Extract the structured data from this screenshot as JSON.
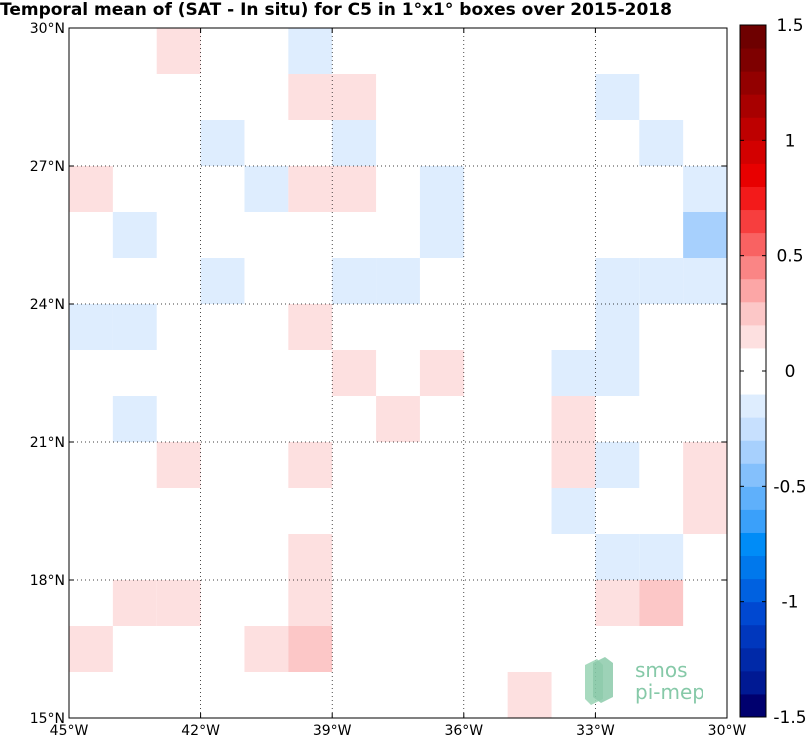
{
  "chart_data": {
    "type": "heatmap",
    "title": "Temporal mean of (SAT - In situ) for C5 in 1°x1° boxes over 2015-2018",
    "xlim": [
      -45,
      -30
    ],
    "ylim": [
      15,
      30
    ],
    "xticks": [
      {
        "value": -45,
        "label": "45°W"
      },
      {
        "value": -42,
        "label": "42°W"
      },
      {
        "value": -39,
        "label": "39°W"
      },
      {
        "value": -36,
        "label": "36°W"
      },
      {
        "value": -33,
        "label": "33°W"
      },
      {
        "value": -30,
        "label": "30°W"
      }
    ],
    "yticks": [
      {
        "value": 15,
        "label": "15°N"
      },
      {
        "value": 18,
        "label": "18°N"
      },
      {
        "value": 21,
        "label": "21°N"
      },
      {
        "value": 24,
        "label": "24°N"
      },
      {
        "value": 27,
        "label": "27°N"
      },
      {
        "value": 30,
        "label": "30°N"
      }
    ],
    "grid": true,
    "colorbar": {
      "min": -1.5,
      "max": 1.5,
      "ticks": [
        {
          "value": 1.5,
          "label": "1.5"
        },
        {
          "value": 1,
          "label": "1"
        },
        {
          "value": 0.5,
          "label": "0.5"
        },
        {
          "value": 0,
          "label": "0"
        },
        {
          "value": -0.5,
          "label": "-0.5"
        },
        {
          "value": -1,
          "label": "-1"
        },
        {
          "value": -1.5,
          "label": "-1.5"
        }
      ],
      "colors": [
        "#00006e",
        "#001993",
        "#0029a8",
        "#0037bd",
        "#0048d1",
        "#0061e0",
        "#0078ec",
        "#008cf7",
        "#3aa0fa",
        "#5fb0fb",
        "#84c0fc",
        "#a7d0fd",
        "#c7e0fe",
        "#deedfe",
        "#ffffff",
        "#ffffff",
        "#fde0e0",
        "#fcc7c7",
        "#fca6a6",
        "#fa8585",
        "#f96262",
        "#f73e3e",
        "#f31a1a",
        "#e80000",
        "#d30000",
        "#be0000",
        "#a80000",
        "#930000",
        "#7e0000",
        "#6e0000"
      ]
    },
    "cells": [
      {
        "lon": -43,
        "lat": 29,
        "value": 0.1
      },
      {
        "lon": -40,
        "lat": 29,
        "value": -0.1
      },
      {
        "lon": -40,
        "lat": 28,
        "value": 0.1
      },
      {
        "lon": -39,
        "lat": 28,
        "value": 0.15
      },
      {
        "lon": -33,
        "lat": 28,
        "value": -0.1
      },
      {
        "lon": -42,
        "lat": 27,
        "value": -0.1
      },
      {
        "lon": -39,
        "lat": 27,
        "value": -0.1
      },
      {
        "lon": -32,
        "lat": 27,
        "value": -0.1
      },
      {
        "lon": -45,
        "lat": 26,
        "value": 0.1
      },
      {
        "lon": -41,
        "lat": 26,
        "value": -0.1
      },
      {
        "lon": -40,
        "lat": 26,
        "value": 0.15
      },
      {
        "lon": -39,
        "lat": 26,
        "value": 0.15
      },
      {
        "lon": -37,
        "lat": 26,
        "value": -0.1
      },
      {
        "lon": -31,
        "lat": 26,
        "value": -0.1
      },
      {
        "lon": -44,
        "lat": 25,
        "value": -0.1
      },
      {
        "lon": -37,
        "lat": 25,
        "value": -0.1
      },
      {
        "lon": -31,
        "lat": 25,
        "value": -0.35
      },
      {
        "lon": -42,
        "lat": 24,
        "value": -0.1
      },
      {
        "lon": -39,
        "lat": 24,
        "value": -0.1
      },
      {
        "lon": -38,
        "lat": 24,
        "value": -0.2
      },
      {
        "lon": -33,
        "lat": 24,
        "value": -0.1
      },
      {
        "lon": -32,
        "lat": 24,
        "value": -0.1
      },
      {
        "lon": -31,
        "lat": 24,
        "value": -0.1
      },
      {
        "lon": -45,
        "lat": 23,
        "value": -0.1
      },
      {
        "lon": -44,
        "lat": 23,
        "value": -0.1
      },
      {
        "lon": -40,
        "lat": 23,
        "value": 0.1
      },
      {
        "lon": -33,
        "lat": 23,
        "value": -0.1
      },
      {
        "lon": -39,
        "lat": 22,
        "value": 0.1
      },
      {
        "lon": -37,
        "lat": 22,
        "value": 0.1
      },
      {
        "lon": -34,
        "lat": 22,
        "value": -0.1
      },
      {
        "lon": -33,
        "lat": 22,
        "value": -0.1
      },
      {
        "lon": -44,
        "lat": 21,
        "value": -0.1
      },
      {
        "lon": -38,
        "lat": 21,
        "value": 0.1
      },
      {
        "lon": -34,
        "lat": 21,
        "value": 0.1
      },
      {
        "lon": -43,
        "lat": 20,
        "value": 0.1
      },
      {
        "lon": -40,
        "lat": 20,
        "value": 0.1
      },
      {
        "lon": -34,
        "lat": 20,
        "value": 0.1
      },
      {
        "lon": -33,
        "lat": 20,
        "value": -0.1
      },
      {
        "lon": -31,
        "lat": 20,
        "value": 0.1
      },
      {
        "lon": -34,
        "lat": 19,
        "value": -0.1
      },
      {
        "lon": -31,
        "lat": 19,
        "value": 0.1
      },
      {
        "lon": -40,
        "lat": 18,
        "value": 0.1
      },
      {
        "lon": -33,
        "lat": 18,
        "value": -0.1
      },
      {
        "lon": -32,
        "lat": 18,
        "value": -0.1
      },
      {
        "lon": -44,
        "lat": 17,
        "value": 0.1
      },
      {
        "lon": -43,
        "lat": 17,
        "value": 0.1
      },
      {
        "lon": -40,
        "lat": 17,
        "value": 0.1
      },
      {
        "lon": -33,
        "lat": 17,
        "value": 0.1
      },
      {
        "lon": -32,
        "lat": 17,
        "value": 0.25
      },
      {
        "lon": -45,
        "lat": 16,
        "value": 0.1
      },
      {
        "lon": -41,
        "lat": 16,
        "value": 0.1
      },
      {
        "lon": -40,
        "lat": 16,
        "value": 0.25
      },
      {
        "lon": -35,
        "lat": 15,
        "value": 0.1
      }
    ]
  },
  "logo": {
    "line1": "smos",
    "line2": "pi-mep",
    "color": "#7fc4a1"
  }
}
